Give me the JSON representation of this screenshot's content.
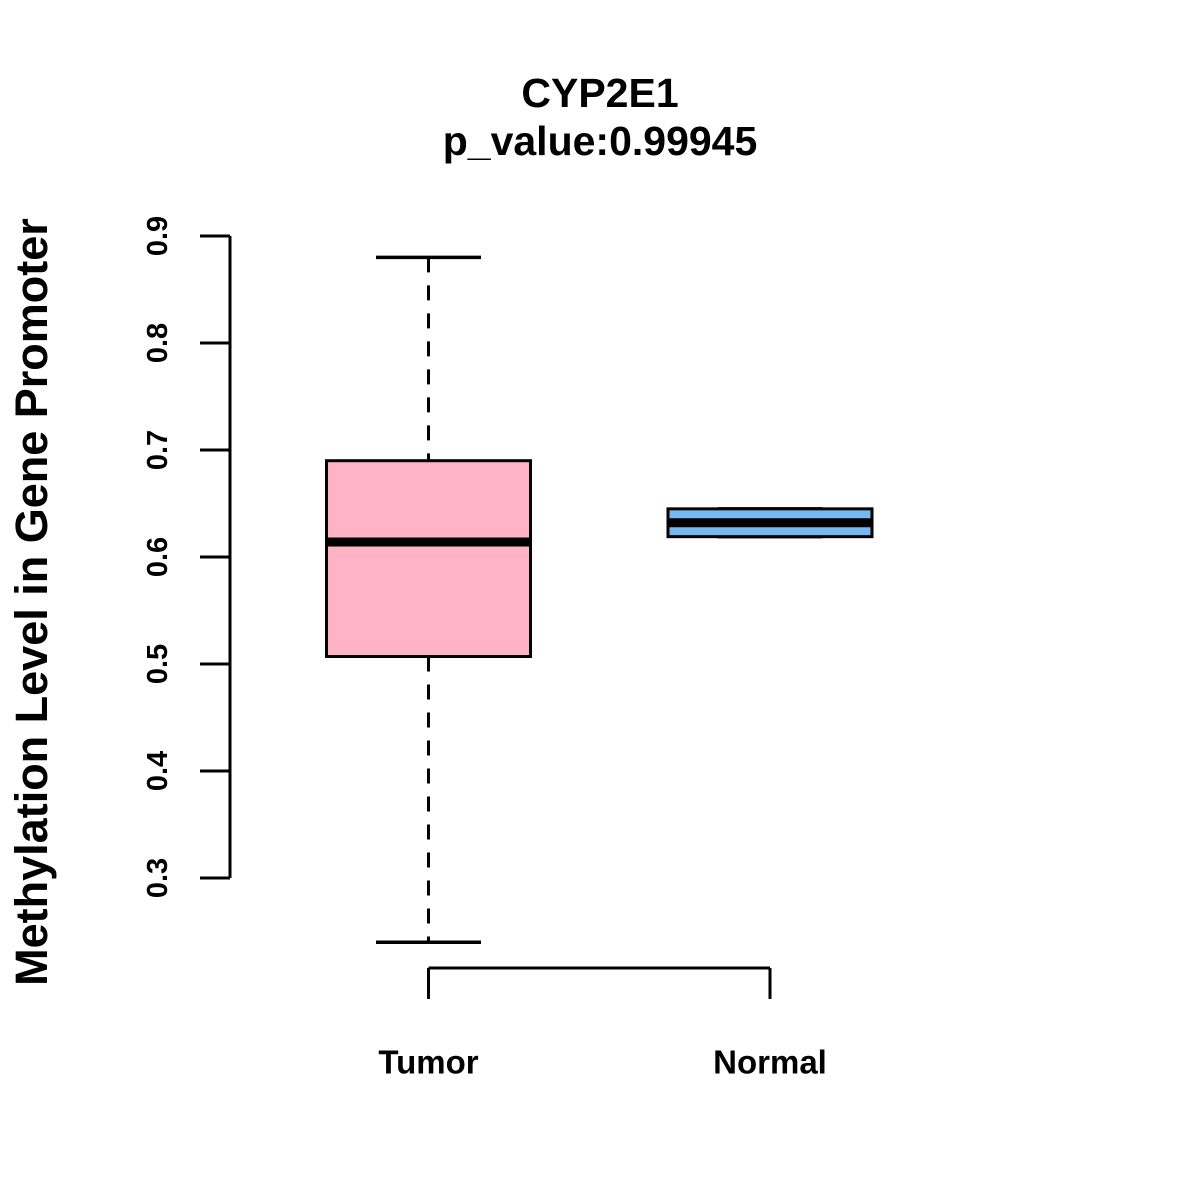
{
  "chart_data": {
    "type": "boxplot",
    "title": "CYP2E1",
    "subtitle": "p_value:0.99945",
    "xlabel": "",
    "ylabel": "Methylation Level in Gene Promoter",
    "categories": [
      "Tumor",
      "Normal"
    ],
    "y_axis": {
      "min": 0.3,
      "max": 0.9,
      "ticks": [
        {
          "label": "0.3",
          "value": 0.3
        },
        {
          "label": "0.4",
          "value": 0.4
        },
        {
          "label": "0.5",
          "value": 0.5
        },
        {
          "label": "0.6",
          "value": 0.6
        },
        {
          "label": "0.7",
          "value": 0.7
        },
        {
          "label": "0.8",
          "value": 0.8
        },
        {
          "label": "0.9",
          "value": 0.9
        }
      ]
    },
    "grid": false,
    "legend": "none",
    "series": [
      {
        "name": "Tumor",
        "fill_color": "#FFB3C4",
        "border_color": "#000000",
        "whisker_low": 0.24,
        "q1": 0.507,
        "median": 0.614,
        "q3": 0.69,
        "whisker_high": 0.88
      },
      {
        "name": "Normal",
        "fill_color": "#74B9F0",
        "border_color": "#000000",
        "whisker_low": 0.619,
        "q1": 0.619,
        "median": 0.632,
        "q3": 0.645,
        "whisker_high": 0.645
      }
    ]
  }
}
